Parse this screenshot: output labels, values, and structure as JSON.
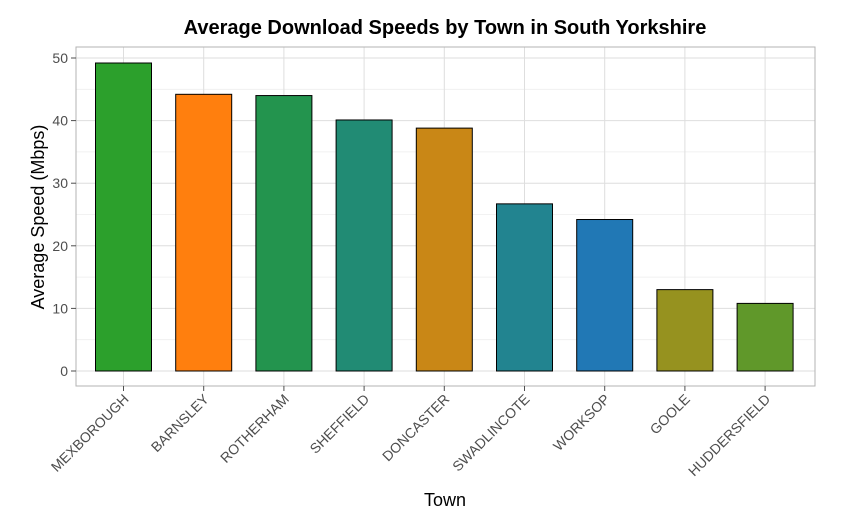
{
  "chart_data": {
    "type": "bar",
    "title": "Average Download Speeds by Town in South Yorkshire",
    "xlabel": "Town",
    "ylabel": "Average Speed (Mbps)",
    "ylim": [
      0,
      50
    ],
    "yticks": [
      0,
      10,
      20,
      30,
      40,
      50
    ],
    "grid": true,
    "categories": [
      "MEXBOROUGH",
      "BARNSLEY",
      "ROTHERHAM",
      "SHEFFIELD",
      "DONCASTER",
      "SWADLINCOTE",
      "WORKSOP",
      "GOOLE",
      "HUDDERSFIELD"
    ],
    "values": [
      49.2,
      44.2,
      44.0,
      40.1,
      38.8,
      26.7,
      24.2,
      13.0,
      10.8
    ],
    "colors": [
      "#2ca02c",
      "#ff7f0e",
      "#23944e",
      "#218b74",
      "#c98716",
      "#228490",
      "#2178b5",
      "#96921f",
      "#60982a"
    ]
  }
}
